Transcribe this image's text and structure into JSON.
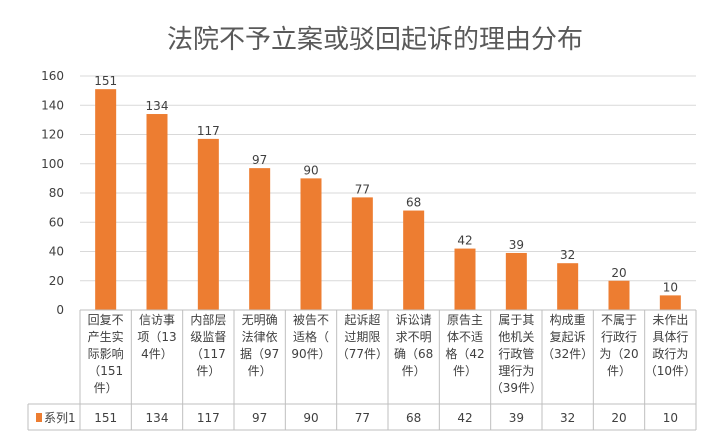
{
  "chart_data": {
    "type": "bar",
    "title": "法院不予立案或驳回起诉的理由分布",
    "xlabel": "",
    "ylabel": "",
    "ylim": [
      0,
      160
    ],
    "yticks": [
      0,
      20,
      40,
      60,
      80,
      100,
      120,
      140,
      160
    ],
    "grid": true,
    "legend": "none",
    "bar_color": "#ED7D31",
    "categories": [
      [
        "回复不",
        "产生实",
        "际影响",
        "（151",
        "件）"
      ],
      [
        "信访事",
        "项（13",
        "4件）"
      ],
      [
        "内部层",
        "级监督",
        "（117",
        "件）"
      ],
      [
        "无明确",
        "法律依",
        "据（97",
        "件）"
      ],
      [
        "被告不",
        "适格（",
        "90件）"
      ],
      [
        "起诉超",
        "过期限",
        "（77件）"
      ],
      [
        "诉讼请",
        "求不明",
        "确（68",
        "件）"
      ],
      [
        "原告主",
        "体不适",
        "格（42",
        "件）"
      ],
      [
        "属于其",
        "他机关",
        "行政管",
        "理行为",
        "（39件）"
      ],
      [
        "构成重",
        "复起诉",
        "（32件）"
      ],
      [
        "不属于",
        "行政行",
        "为（20",
        "件）"
      ],
      [
        "未作出",
        "具体行",
        "政行为",
        "（10件）"
      ]
    ],
    "series": [
      {
        "name": "系列1",
        "values": [
          151,
          134,
          117,
          97,
          90,
          77,
          68,
          42,
          39,
          32,
          20,
          10
        ]
      }
    ]
  }
}
